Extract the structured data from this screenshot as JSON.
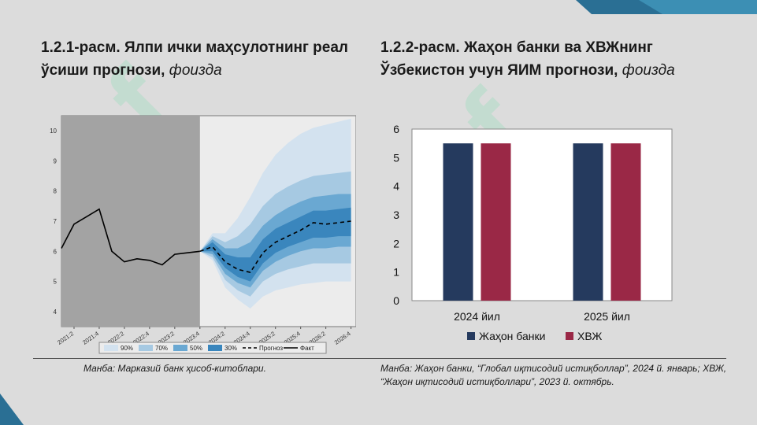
{
  "left": {
    "title_main": "1.2.1-расм. Ялпи ички маҳсулотнинг реал ўсиши прогнози,",
    "title_unit": "фоизда",
    "source": "Манба: Марказий банк ҳисоб-китоблари."
  },
  "right": {
    "title_main": "1.2.2-расм. Жаҳон банки ва ХВЖнинг Ўзбекистон учун ЯИМ прогнози,",
    "title_unit": "фоизда",
    "source": "Манба: Жаҳон банки, “Глобал иқтисодий истиқболлар”, 2024 й. январь; ХВЖ, “Жаҳон иқтисодий истиқболлари”, 2023 й. октябрь."
  },
  "colors": {
    "band90": "#d3e2ef",
    "band70": "#a6c9e2",
    "band50": "#6aa8d2",
    "band30": "#3a86bd",
    "history_shade": "#a3a3a3",
    "bar_wb": "#253a5e",
    "bar_imf": "#9a2846"
  },
  "chart_data": [
    {
      "type": "area",
      "title": "",
      "ylim": [
        3.5,
        10.5
      ],
      "yticks": [
        "4",
        "5",
        "6",
        "7",
        "8",
        "9",
        "10"
      ],
      "xticks": [
        "2021:2",
        "2021:4",
        "2022:2",
        "2022:4",
        "2023:2",
        "2023:4",
        "2024:2",
        "2024:4",
        "2025:2",
        "2025:4",
        "2026:2",
        "2026:4"
      ],
      "history_end": "2023:4",
      "legend": [
        "90%",
        "70%",
        "50%",
        "30%",
        "Прогноз",
        "Факт"
      ],
      "fact": {
        "x": [
          "2021:1",
          "2021:2",
          "2021:3",
          "2021:4",
          "2022:1",
          "2022:2",
          "2022:3",
          "2022:4",
          "2023:1",
          "2023:2",
          "2023:3",
          "2023:4"
        ],
        "values": [
          6.1,
          6.9,
          7.15,
          7.4,
          6.0,
          5.65,
          5.75,
          5.7,
          5.55,
          5.9,
          5.95,
          6.0
        ]
      },
      "forecast": {
        "x": [
          "2023:4",
          "2024:1",
          "2024:2",
          "2024:3",
          "2024:4",
          "2025:1",
          "2025:2",
          "2025:3",
          "2025:4",
          "2026:1",
          "2026:2",
          "2026:3",
          "2026:4"
        ],
        "values": [
          6.0,
          6.15,
          5.65,
          5.4,
          5.3,
          5.95,
          6.3,
          6.5,
          6.7,
          6.95,
          6.9,
          6.95,
          7.0
        ],
        "bands": {
          "90": {
            "lower": [
              6.0,
              5.7,
              4.8,
              4.4,
              4.1,
              4.5,
              4.7,
              4.8,
              4.9,
              4.95,
              5.0,
              5.0,
              5.0
            ],
            "upper": [
              6.0,
              6.6,
              6.6,
              7.1,
              7.8,
              8.6,
              9.2,
              9.6,
              9.9,
              10.1,
              10.2,
              10.3,
              10.4
            ]
          },
          "70": {
            "lower": [
              6.0,
              5.8,
              5.05,
              4.7,
              4.5,
              5.0,
              5.25,
              5.4,
              5.5,
              5.6,
              5.6,
              5.6,
              5.6
            ],
            "upper": [
              6.0,
              6.5,
              6.3,
              6.5,
              6.9,
              7.5,
              7.9,
              8.15,
              8.35,
              8.5,
              8.55,
              8.6,
              8.65
            ]
          },
          "50": {
            "lower": [
              6.0,
              5.9,
              5.25,
              4.95,
              4.8,
              5.35,
              5.65,
              5.85,
              6.0,
              6.1,
              6.1,
              6.15,
              6.15
            ],
            "upper": [
              6.0,
              6.4,
              6.1,
              6.1,
              6.3,
              6.85,
              7.2,
              7.45,
              7.65,
              7.8,
              7.85,
              7.9,
              7.9
            ]
          },
          "30": {
            "lower": [
              6.0,
              6.0,
              5.45,
              5.15,
              5.0,
              5.6,
              5.95,
              6.15,
              6.3,
              6.45,
              6.45,
              6.5,
              6.5
            ],
            "upper": [
              6.0,
              6.3,
              5.9,
              5.8,
              5.8,
              6.4,
              6.75,
              6.95,
              7.15,
              7.35,
              7.35,
              7.4,
              7.45
            ]
          }
        }
      }
    },
    {
      "type": "bar",
      "title": "",
      "categories": [
        "2024 йил",
        "2025 йил"
      ],
      "ylim": [
        0,
        6
      ],
      "yticks": [
        "0",
        "1",
        "2",
        "3",
        "4",
        "5",
        "6"
      ],
      "series": [
        {
          "name": "Жаҳон банки",
          "values": [
            5.5,
            5.5
          ]
        },
        {
          "name": "ХВЖ",
          "values": [
            5.5,
            5.5
          ]
        }
      ]
    }
  ]
}
